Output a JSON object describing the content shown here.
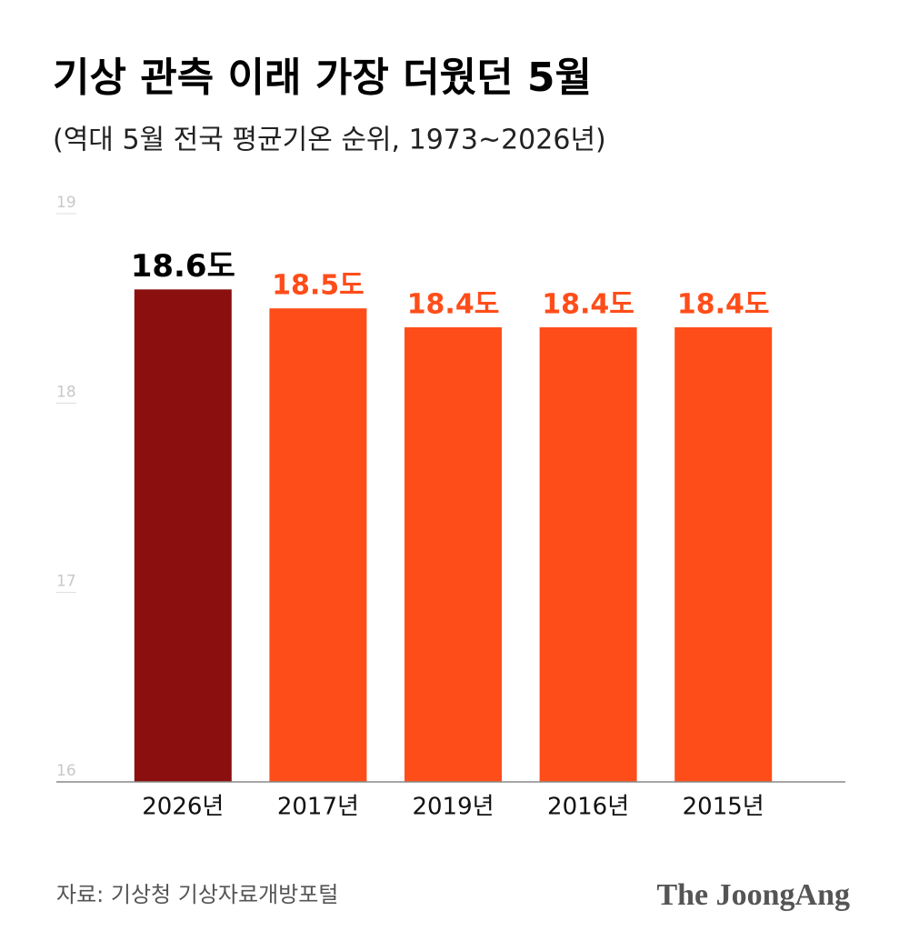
{
  "chart_data": {
    "type": "bar",
    "title": "기상 관측 이래 가장 더웠던 5월",
    "subtitle": "(역대 5월 전국 평균기온 순위, 1973~2026년)",
    "categories": [
      "2026년",
      "2017년",
      "2019년",
      "2016년",
      "2015년"
    ],
    "values": [
      18.6,
      18.5,
      18.4,
      18.4,
      18.4
    ],
    "value_labels": [
      "18.6도",
      "18.5도",
      "18.4도",
      "18.4도",
      "18.4도"
    ],
    "colors": [
      "#8c0f0f",
      "#ff4d1a",
      "#ff4d1a",
      "#ff4d1a",
      "#ff4d1a"
    ],
    "label_colors": [
      "#000000",
      "#ff4d1a",
      "#ff4d1a",
      "#ff4d1a",
      "#ff4d1a"
    ],
    "ylim": [
      16,
      19
    ],
    "yticks": [
      16,
      17,
      18,
      19
    ],
    "grid": false,
    "source": "자료: 기상청 기상자료개방포털",
    "logo": "The JoongAng"
  }
}
